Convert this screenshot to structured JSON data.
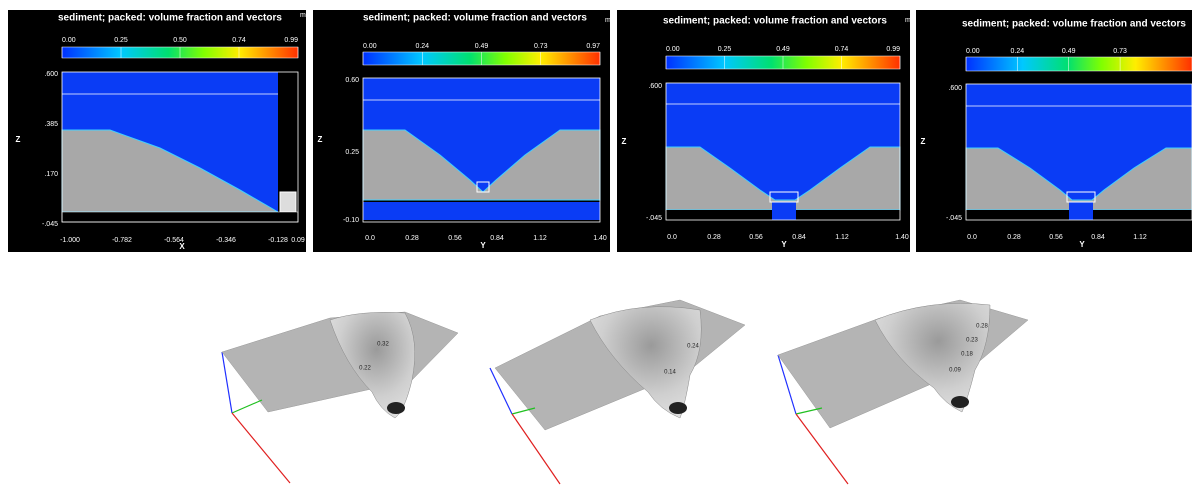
{
  "panels": [
    {
      "title": "sediment; packed: volume fraction and vectors",
      "unit": "m",
      "colorbar_ticks": [
        "0.00",
        "0.25",
        "0.50",
        "0.74",
        "0.99"
      ],
      "y_ticks": [
        ".600",
        ".385",
        ".170",
        "-.045"
      ],
      "x_ticks": [
        "-1.000",
        "-0.782",
        "-0.564",
        "-0.346",
        "-0.128",
        "0.09"
      ],
      "x_label": "X",
      "y_label": "Z"
    },
    {
      "title": "sediment; packed: volume fraction and vectors",
      "unit": "m",
      "colorbar_ticks": [
        "0.00",
        "0.24",
        "0.49",
        "0.73",
        "0.97"
      ],
      "y_ticks": [
        "0.60",
        "0.25",
        "-0.10"
      ],
      "x_ticks": [
        "0.0",
        "0.28",
        "0.56",
        "0.84",
        "1.12",
        "1.40"
      ],
      "x_label": "Y",
      "y_label": "Z"
    },
    {
      "title": "sediment; packed: volume fraction and vectors",
      "unit": "m",
      "colorbar_ticks": [
        "0.00",
        "0.25",
        "0.49",
        "0.74",
        "0.99"
      ],
      "y_ticks": [
        ".600",
        "-.045"
      ],
      "x_ticks": [
        "0.0",
        "0.28",
        "0.56",
        "0.84",
        "1.12",
        "1.40"
      ],
      "x_label": "Y",
      "y_label": "Z"
    },
    {
      "title": "sediment; packed: volume fraction and vectors",
      "colorbar_ticks": [
        "0.00",
        "0.24",
        "0.49",
        "0.73"
      ],
      "y_ticks": [
        ".600",
        "-.045"
      ],
      "x_ticks": [
        "0.0",
        "0.28",
        "0.56",
        "0.84",
        "1.12"
      ],
      "x_label": "Y",
      "y_label": "Z"
    }
  ],
  "surfaces": [
    {
      "contour_labels": [
        "0.32",
        "0.22"
      ]
    },
    {
      "contour_labels": [
        "0.24",
        "0.14"
      ]
    },
    {
      "contour_labels": [
        "0.28",
        "0.23",
        "0.18",
        "0.09"
      ]
    }
  ]
}
